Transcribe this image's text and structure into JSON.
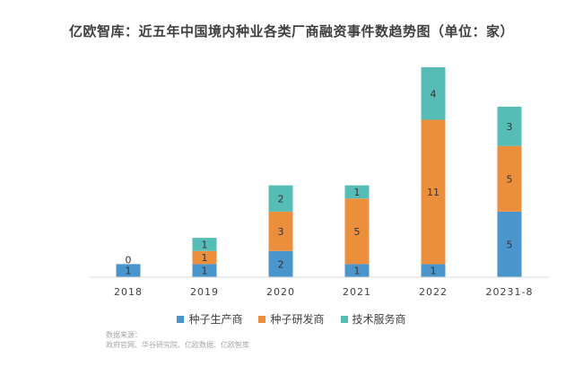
{
  "chart_data": {
    "type": "bar",
    "stacked": true,
    "title": "亿欧智库：近五年中国境内种业各类厂商融资事件数趋势图（单位：家）",
    "categories": [
      "2018",
      "2019",
      "2020",
      "2021",
      "2022",
      "2023.1-8"
    ],
    "category_labels": [
      "2018",
      "2019",
      "2020",
      "2021",
      "2022",
      "20231-8"
    ],
    "series": [
      {
        "name": "种子生产商",
        "color": "#4a96cc",
        "values": [
          1,
          1,
          2,
          1,
          1,
          5
        ]
      },
      {
        "name": "种子研发商",
        "color": "#ec8f3c",
        "values": [
          0,
          1,
          3,
          5,
          11,
          5
        ]
      },
      {
        "name": "技术服务商",
        "color": "#55bcb6",
        "values": [
          0,
          1,
          2,
          1,
          4,
          3
        ]
      }
    ],
    "ylim": [
      0,
      16
    ],
    "grid": false,
    "legend_position": "bottom"
  },
  "source": {
    "label": "数据来源：",
    "text": "政府官网、华谷研究院、亿欧数据、亿欧智库"
  }
}
